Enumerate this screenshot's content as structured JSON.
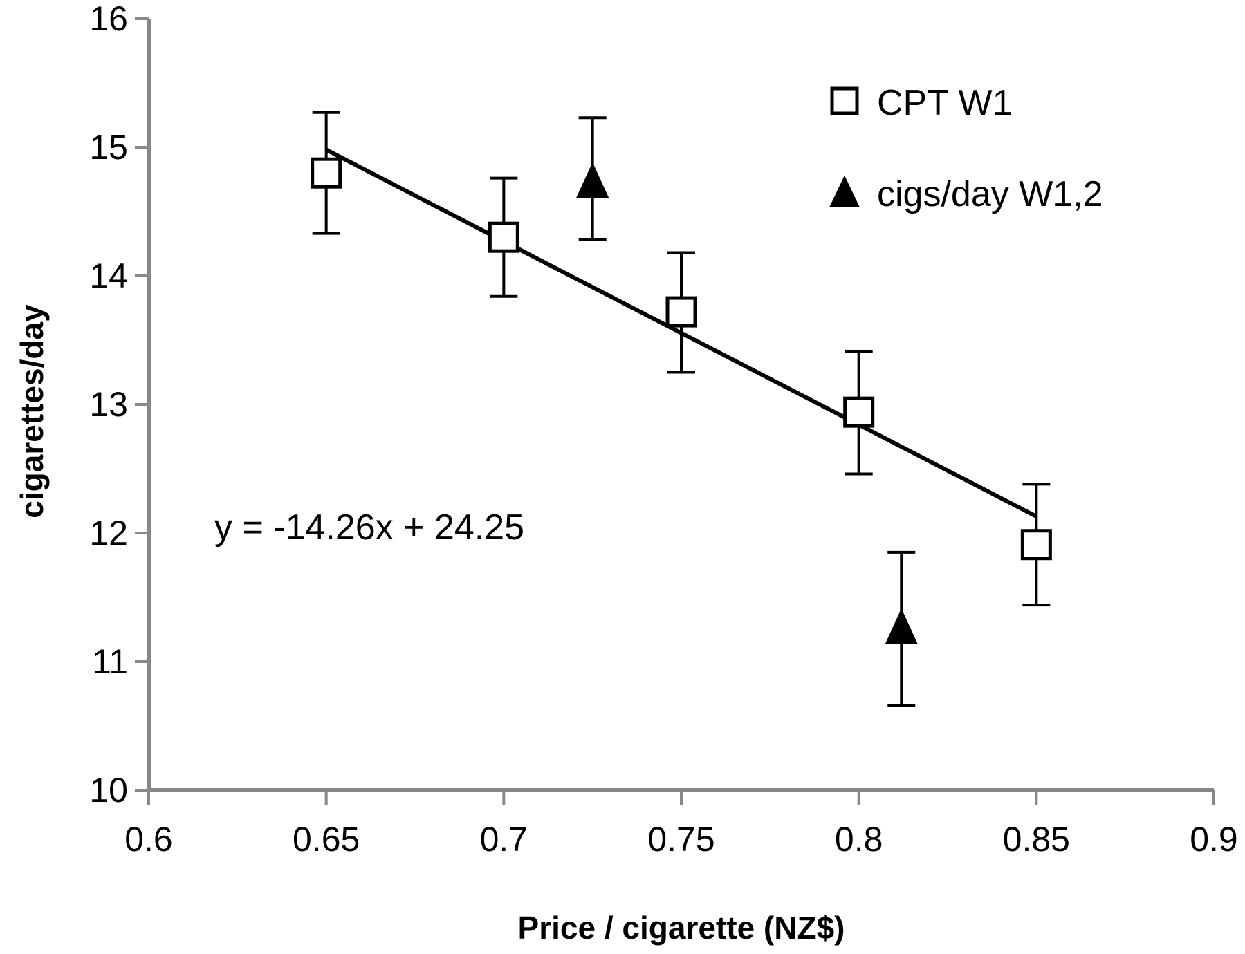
{
  "chart_data": {
    "type": "scatter",
    "xlabel": "Price / cigarette (NZ$)",
    "ylabel": "cigarettes/day",
    "xlim": [
      0.6,
      0.9
    ],
    "ylim": [
      10,
      16
    ],
    "x_ticks": [
      "0.6",
      "0.65",
      "0.7",
      "0.75",
      "0.8",
      "0.85",
      "0.9"
    ],
    "y_ticks": [
      "10",
      "11",
      "12",
      "13",
      "14",
      "15",
      "16"
    ],
    "x_tick_values": [
      0.6,
      0.65,
      0.7,
      0.75,
      0.8,
      0.85,
      0.9
    ],
    "y_tick_values": [
      10,
      11,
      12,
      13,
      14,
      15,
      16
    ],
    "grid": false,
    "legend_position": "top-right",
    "series": [
      {
        "name": "CPT W1",
        "marker": "open-square",
        "points": [
          {
            "x": 0.65,
            "y": 14.8,
            "err_low": 14.33,
            "err_high": 15.27
          },
          {
            "x": 0.7,
            "y": 14.3,
            "err_low": 13.84,
            "err_high": 14.76
          },
          {
            "x": 0.75,
            "y": 13.72,
            "err_low": 13.25,
            "err_high": 14.18
          },
          {
            "x": 0.8,
            "y": 12.94,
            "err_low": 12.46,
            "err_high": 13.41
          },
          {
            "x": 0.85,
            "y": 11.91,
            "err_low": 11.44,
            "err_high": 12.38
          }
        ]
      },
      {
        "name": "cigs/day W1,2",
        "marker": "filled-triangle",
        "points": [
          {
            "x": 0.725,
            "y": 14.72,
            "err_low": 14.28,
            "err_high": 15.23
          },
          {
            "x": 0.812,
            "y": 11.25,
            "err_low": 10.66,
            "err_high": 11.85
          }
        ]
      }
    ],
    "trendline": {
      "slope": -14.26,
      "intercept": 24.25,
      "x_range": [
        0.65,
        0.85
      ],
      "equation_label": "y = -14.26x + 24.25"
    }
  }
}
